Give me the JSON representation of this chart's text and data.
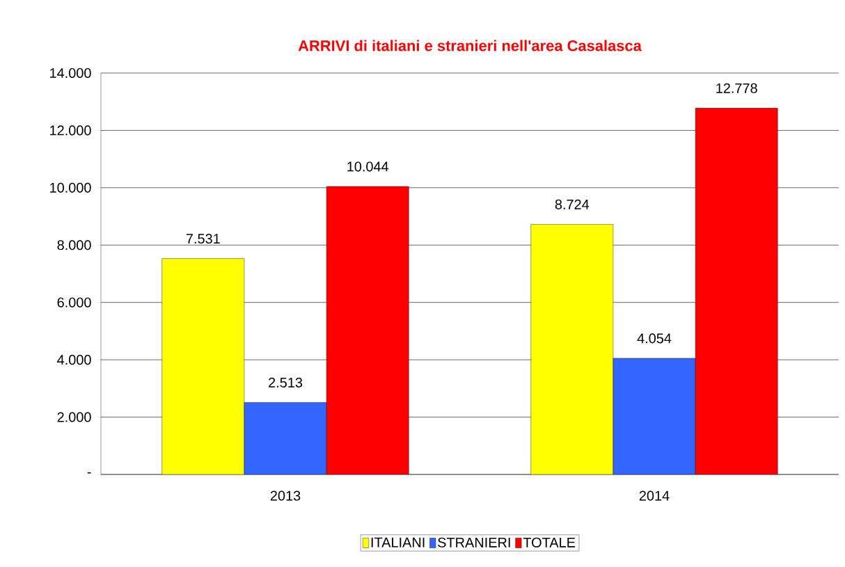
{
  "chart_data": {
    "type": "bar",
    "title": "ARRIVI di italiani e stranieri nell'area Casalasca",
    "categories": [
      "2013",
      "2014"
    ],
    "series": [
      {
        "name": "ITALIANI",
        "color": "#ffff00",
        "values": [
          7531,
          8724
        ],
        "value_labels": [
          "7.531",
          "8.724"
        ]
      },
      {
        "name": "STRANIERI",
        "color": "#3366ff",
        "values": [
          2513,
          4054
        ],
        "value_labels": [
          "2.513",
          "4.054"
        ]
      },
      {
        "name": "TOTALE",
        "color": "#ff0000",
        "values": [
          10044,
          12778
        ],
        "value_labels": [
          "10.044",
          "12.778"
        ]
      }
    ],
    "ylim": [
      0,
      14000
    ],
    "yticks": [
      {
        "value": 0,
        "label": "-"
      },
      {
        "value": 2000,
        "label": "2.000"
      },
      {
        "value": 4000,
        "label": "4.000"
      },
      {
        "value": 6000,
        "label": "6.000"
      },
      {
        "value": 8000,
        "label": "8.000"
      },
      {
        "value": 10000,
        "label": "10.000"
      },
      {
        "value": 12000,
        "label": "12.000"
      },
      {
        "value": 14000,
        "label": "14.000"
      }
    ],
    "grid": "y",
    "legend": "bottom"
  }
}
